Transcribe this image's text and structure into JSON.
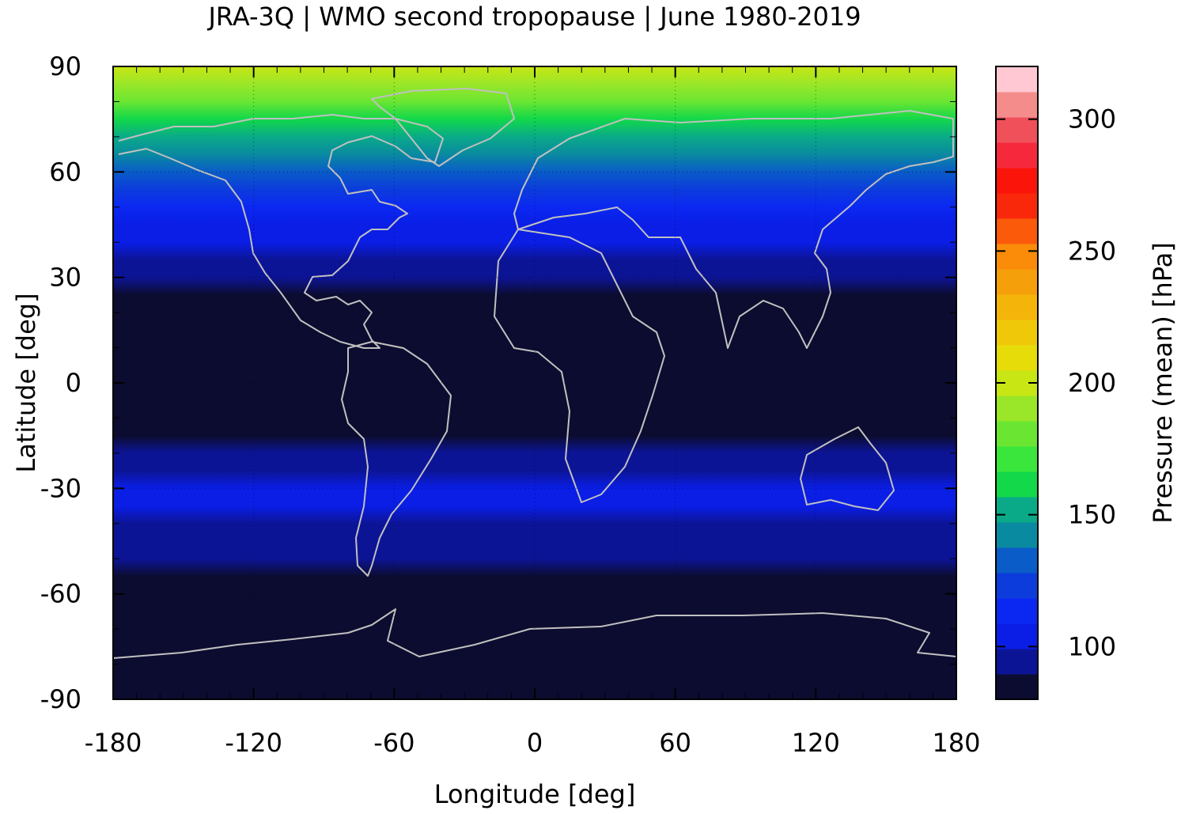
{
  "title": "JRA-3Q | WMO second tropopause | June 1980-2019",
  "chart_data": {
    "type": "heatmap",
    "title": "JRA-3Q | WMO second tropopause | June 1980-2019",
    "xlabel": "Longitude [deg]",
    "ylabel": "Latitude [deg]",
    "xlim": [
      -180,
      180
    ],
    "ylim": [
      -90,
      90
    ],
    "x_ticks": [
      -180,
      -120,
      -60,
      0,
      60,
      120,
      180
    ],
    "x_tick_labels": [
      "-180",
      "-120",
      "-60",
      "0",
      "60",
      "120",
      "180"
    ],
    "y_ticks": [
      90,
      60,
      30,
      0,
      -30,
      -60,
      -90
    ],
    "y_tick_labels": [
      "90",
      "60",
      "30",
      "0",
      "-30",
      "-60",
      "-90"
    ],
    "grid": true,
    "coastlines_color": "#c0c0c0",
    "zonal_profile": {
      "description_units": "latitude [deg] -> mean pressure [hPa]",
      "lat": [
        90,
        85,
        80,
        75,
        70,
        65,
        60,
        55,
        50,
        45,
        40,
        35,
        30,
        25,
        20,
        15,
        10,
        5,
        0,
        -5,
        -10,
        -15,
        -20,
        -25,
        -30,
        -35,
        -40,
        -45,
        -50,
        -55,
        -60,
        -65,
        -70,
        -75,
        -80,
        -85,
        -90
      ],
      "pressure": [
        200,
        190,
        180,
        165,
        155,
        145,
        135,
        122,
        112,
        105,
        100,
        96,
        92,
        89,
        88,
        87,
        86,
        86,
        86,
        86,
        87,
        88,
        90,
        95,
        100,
        101,
        99,
        96,
        90,
        86,
        85,
        84,
        84,
        84,
        84,
        84,
        84
      ]
    },
    "colorbar": {
      "label": "Pressure (mean) [hPa]",
      "range": [
        80,
        320
      ],
      "ticks": [
        100,
        150,
        200,
        250,
        300
      ],
      "tick_labels": [
        "100",
        "150",
        "200",
        "250",
        "300"
      ],
      "colors": [
        "#0c0c30",
        "#0c1496",
        "#0a1ee6",
        "#0b28f2",
        "#0c3cdc",
        "#0a5cc8",
        "#0a8aa0",
        "#0aaa88",
        "#12d84a",
        "#3ae63c",
        "#6ae632",
        "#9ae628",
        "#c8e614",
        "#e6dc0a",
        "#f0c80a",
        "#f5b40a",
        "#f5a00a",
        "#fa8c0a",
        "#fa5a0a",
        "#fa280a",
        "#fa140a",
        "#f5283c",
        "#f0505a",
        "#f58c8c",
        "#ffc8d2"
      ]
    }
  }
}
